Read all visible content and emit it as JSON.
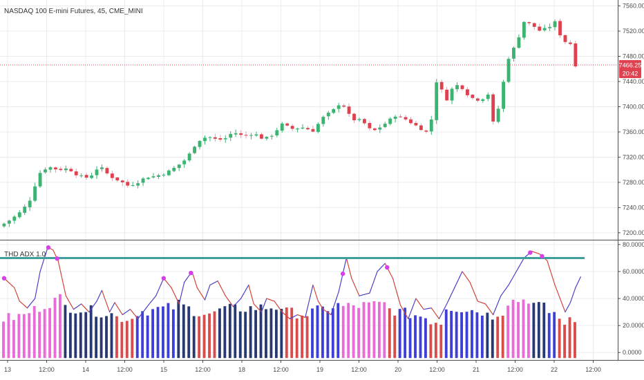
{
  "colors": {
    "up": "#3cb371",
    "down": "#e0414f",
    "wick_light": "#d9a0a6",
    "grid": "#e9ecef",
    "adx_line_rising": "#4a42c9",
    "adx_line_falling": "#d2453d",
    "threshold_line": "#3e9e9c",
    "dot": "#d640e8",
    "price_line": "#e0414f",
    "hist_pink": "#e86bd8",
    "hist_red": "#d94c4c",
    "hist_blue": "#3d3fd6",
    "hist_navy": "#283870"
  },
  "chart_data": [
    {
      "type": "candlestick",
      "title": "NASDAQ 100 E-mini Futures, 45, CME_MINI",
      "ylim": [
        7190,
        7565
      ],
      "y_ticks": [
        "7560.00",
        "7520.00",
        "7480.00",
        "7440.00",
        "7400.00",
        "7360.00",
        "7320.00",
        "7280.00",
        "7240.00",
        "7200.00"
      ],
      "y_tick_values": [
        7560,
        7520,
        7480,
        7440,
        7400,
        7360,
        7320,
        7280,
        7240,
        7200
      ],
      "x_ticks": [
        "13",
        "12:00",
        "14",
        "12:00",
        "15",
        "12:00",
        "18",
        "12:00",
        "19",
        "12:00",
        "20",
        "12:00",
        "21",
        "12:00",
        "22",
        "12:00"
      ],
      "last_price": "7466.25",
      "last_price_value": 7466.25,
      "countdown": "20:42",
      "close_path": [
        [
          0,
          7212
        ],
        [
          2,
          7222
        ],
        [
          4,
          7235
        ],
        [
          6,
          7258
        ],
        [
          7,
          7292
        ],
        [
          9,
          7305
        ],
        [
          11,
          7300
        ],
        [
          13,
          7302
        ],
        [
          15,
          7290
        ],
        [
          17,
          7287
        ],
        [
          19,
          7306
        ],
        [
          21,
          7290
        ],
        [
          23,
          7282
        ],
        [
          24.5,
          7275
        ],
        [
          26,
          7278
        ],
        [
          28,
          7288
        ],
        [
          30,
          7290
        ],
        [
          32,
          7295
        ],
        [
          34,
          7305
        ],
        [
          36,
          7318
        ],
        [
          38,
          7345
        ],
        [
          40,
          7353
        ],
        [
          42,
          7347
        ],
        [
          43.5,
          7350
        ],
        [
          45,
          7360
        ],
        [
          47,
          7353
        ],
        [
          49,
          7358
        ],
        [
          51,
          7348
        ],
        [
          52.5,
          7355
        ],
        [
          54.5,
          7372
        ],
        [
          56.5,
          7365
        ],
        [
          58.5,
          7367
        ],
        [
          60.5,
          7362
        ],
        [
          62.5,
          7383
        ],
        [
          64.5,
          7395
        ],
        [
          66,
          7408
        ],
        [
          68,
          7380
        ],
        [
          70,
          7378
        ],
        [
          72,
          7360
        ],
        [
          74,
          7370
        ],
        [
          76.5,
          7386
        ],
        [
          78.5,
          7380
        ],
        [
          80.5,
          7370
        ],
        [
          82.5,
          7360
        ],
        [
          83.5,
          7380
        ],
        [
          84.5,
          7440
        ],
        [
          86.5,
          7412
        ],
        [
          88,
          7436
        ],
        [
          89.5,
          7430
        ],
        [
          91,
          7415
        ],
        [
          93,
          7410
        ],
        [
          94.5,
          7420
        ],
        [
          95.5,
          7375
        ],
        [
          97,
          7408
        ],
        [
          98,
          7470
        ],
        [
          100,
          7500
        ],
        [
          101.5,
          7535
        ],
        [
          103,
          7530
        ],
        [
          104.5,
          7521
        ],
        [
          106,
          7524
        ],
        [
          107.5,
          7534
        ],
        [
          109,
          7505
        ],
        [
          110.5,
          7500
        ],
        [
          111.5,
          7466
        ]
      ]
    },
    {
      "type": "line+bar",
      "title": "THD ADX 1.0",
      "ylim": [
        -5,
        82
      ],
      "y_ticks": [
        "80.0000",
        "60.0000",
        "40.0000",
        "20.0000",
        "0.0000"
      ],
      "y_tick_values": [
        80,
        60,
        40,
        20,
        0
      ],
      "threshold": 70,
      "adx_path": [
        [
          0,
          55
        ],
        [
          2,
          48
        ],
        [
          3,
          38
        ],
        [
          4.5,
          33
        ],
        [
          6,
          40
        ],
        [
          7,
          60
        ],
        [
          8.5,
          78
        ],
        [
          9.5,
          76
        ],
        [
          10.5,
          68
        ],
        [
          12,
          42
        ],
        [
          13.5,
          32
        ],
        [
          15,
          36
        ],
        [
          16.5,
          30
        ],
        [
          18,
          38
        ],
        [
          19,
          46
        ],
        [
          20.5,
          30
        ],
        [
          21.5,
          37
        ],
        [
          23,
          28
        ],
        [
          24.5,
          32
        ],
        [
          26,
          25
        ],
        [
          28,
          35
        ],
        [
          29.5,
          42
        ],
        [
          31,
          55
        ],
        [
          32.5,
          48
        ],
        [
          34,
          36
        ],
        [
          35,
          52
        ],
        [
          36.5,
          60
        ],
        [
          37.5,
          48
        ],
        [
          39,
          39
        ],
        [
          40,
          50
        ],
        [
          41.5,
          53
        ],
        [
          43,
          42
        ],
        [
          44.5,
          34
        ],
        [
          46,
          40
        ],
        [
          47.5,
          50
        ],
        [
          48.5,
          36
        ],
        [
          50,
          30
        ],
        [
          51,
          40
        ],
        [
          52.5,
          38
        ],
        [
          54,
          30
        ],
        [
          55.5,
          25
        ],
        [
          57,
          28
        ],
        [
          58.5,
          26
        ],
        [
          60,
          50
        ],
        [
          61,
          38
        ],
        [
          62,
          32
        ],
        [
          63.5,
          28
        ],
        [
          65,
          45
        ],
        [
          66.5,
          70
        ],
        [
          67.5,
          55
        ],
        [
          69,
          42
        ],
        [
          71,
          44
        ],
        [
          72.5,
          60
        ],
        [
          74,
          66
        ],
        [
          75.5,
          55
        ],
        [
          77,
          35
        ],
        [
          78.5,
          25
        ],
        [
          80,
          40
        ],
        [
          81.5,
          32
        ],
        [
          83,
          33
        ],
        [
          84.5,
          25
        ],
        [
          86,
          36
        ],
        [
          87.5,
          48
        ],
        [
          89,
          60
        ],
        [
          90.5,
          52
        ],
        [
          92,
          38
        ],
        [
          93.5,
          36
        ],
        [
          95,
          28
        ],
        [
          96.5,
          42
        ],
        [
          98,
          50
        ],
        [
          99.5,
          60
        ],
        [
          101,
          70
        ],
        [
          102.5,
          75
        ],
        [
          104,
          73
        ],
        [
          105.5,
          68
        ],
        [
          107,
          50
        ],
        [
          109,
          30
        ],
        [
          110,
          37
        ],
        [
          111,
          48
        ],
        [
          112,
          56
        ]
      ],
      "dot_x": [
        0,
        8.6,
        10.3,
        31,
        36.3,
        65.8,
        74.4,
        102.2,
        104.5
      ],
      "hist_segments": [
        [
          0,
          5,
          "hist_pink",
          25,
          28
        ],
        [
          5,
          12,
          "hist_pink",
          30,
          42
        ],
        [
          12,
          22,
          "hist_navy",
          34,
          28
        ],
        [
          22,
          25.5,
          "hist_red",
          26,
          25
        ],
        [
          25.5,
          34,
          "hist_blue",
          30,
          34
        ],
        [
          34,
          37.5,
          "hist_navy",
          36,
          30
        ],
        [
          37.5,
          42,
          "hist_red",
          30,
          28
        ],
        [
          42,
          55,
          "hist_navy",
          32,
          34
        ],
        [
          55,
          60,
          "hist_red",
          30,
          28
        ],
        [
          60,
          66,
          "hist_blue",
          30,
          36
        ],
        [
          66,
          75,
          "hist_pink",
          34,
          36
        ],
        [
          75,
          77,
          "hist_red",
          32,
          30
        ],
        [
          77,
          82.5,
          "hist_blue",
          30,
          26
        ],
        [
          82.5,
          86,
          "hist_red",
          24,
          22
        ],
        [
          86,
          94,
          "hist_blue",
          34,
          30
        ],
        [
          94,
          96,
          "hist_navy",
          28,
          26
        ],
        [
          96,
          98,
          "hist_red",
          30,
          30
        ],
        [
          98,
          103,
          "hist_pink",
          38,
          40
        ],
        [
          103,
          106,
          "hist_navy",
          36,
          32
        ],
        [
          106,
          108,
          "hist_blue",
          30,
          30
        ],
        [
          108,
          111.5,
          "hist_red",
          24,
          22
        ],
        [
          111.5,
          112,
          "hist_pink",
          35,
          35
        ]
      ]
    }
  ]
}
